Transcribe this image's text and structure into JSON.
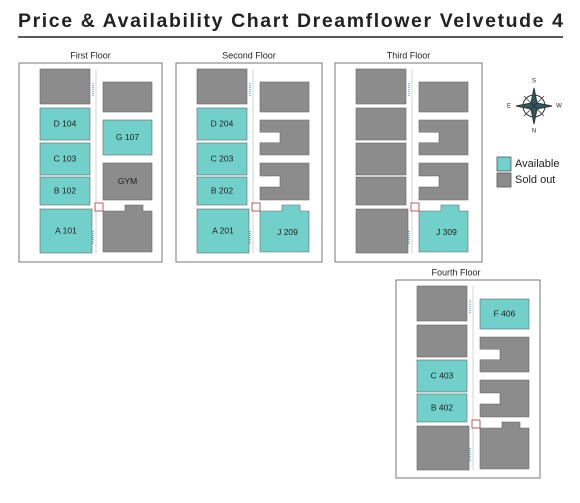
{
  "header": {
    "title": "Price & Availability Chart Dreamflower Velvetude 4"
  },
  "floors": [
    {
      "label": "First Floor",
      "units": [
        "D 104",
        "C 103",
        "B 102",
        "A 101",
        "G 107",
        "GYM"
      ]
    },
    {
      "label": "Second Floor",
      "units": [
        "D 204",
        "C 203",
        "B 202",
        "A 201",
        "J 209"
      ]
    },
    {
      "label": "Third Floor",
      "units": [
        "J 309"
      ]
    },
    {
      "label": "Fourth Floor",
      "units": [
        "C 403",
        "B 402",
        "F 406"
      ]
    }
  ],
  "legend": [
    {
      "label": "Available",
      "color": "#72d0cb"
    },
    {
      "label": "Sold out",
      "color": "#8c8c8c"
    }
  ],
  "compass": {
    "top": "S",
    "bottom": "N",
    "left": "E",
    "right": "W"
  }
}
